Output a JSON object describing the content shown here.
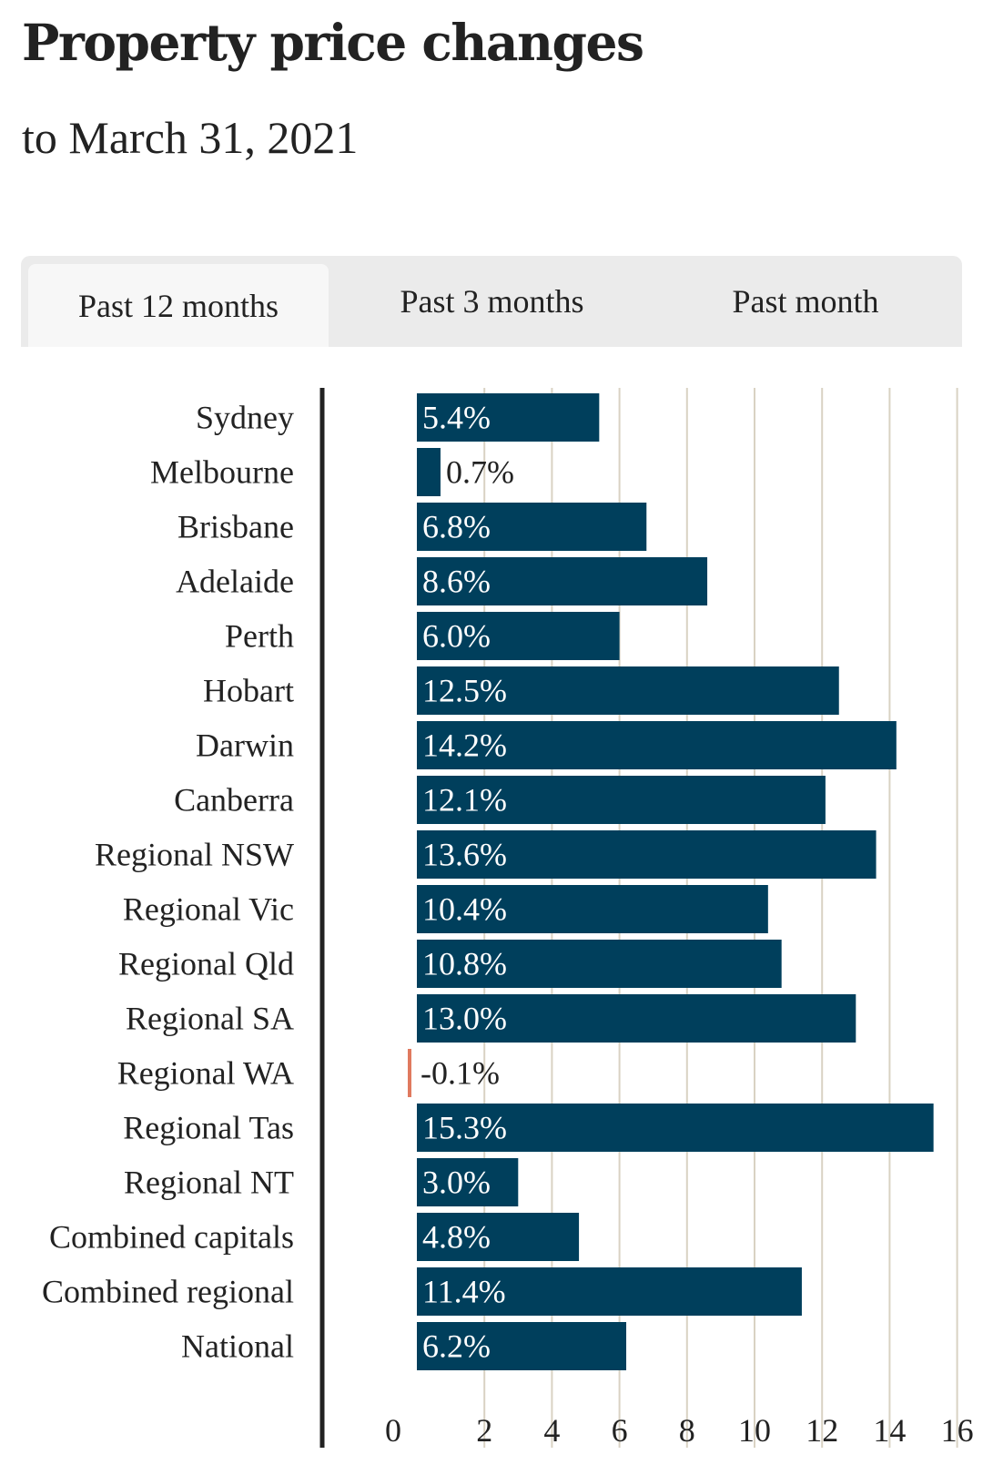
{
  "header": {
    "title": "Property price changes",
    "subtitle": "to March 31, 2021"
  },
  "tabs": [
    {
      "label": "Past 12 months",
      "active": true
    },
    {
      "label": "Past 3 months",
      "active": false
    },
    {
      "label": "Past month",
      "active": false
    }
  ],
  "colors": {
    "bar_positive": "#003f5c",
    "bar_negative": "#e07a5f",
    "gridline": "#d9d2c3",
    "axis": "#222222"
  },
  "chart_data": {
    "type": "bar",
    "orientation": "horizontal",
    "title": "Property price changes",
    "subtitle": "to March 31, 2021",
    "xlabel": "",
    "ylabel": "",
    "unit": "%",
    "xlim": [
      0,
      16
    ],
    "ticks": [
      0,
      2,
      4,
      6,
      8,
      10,
      12,
      14,
      16
    ],
    "grid": true,
    "categories": [
      "Sydney",
      "Melbourne",
      "Brisbane",
      "Adelaide",
      "Perth",
      "Hobart",
      "Darwin",
      "Canberra",
      "Regional NSW",
      "Regional Vic",
      "Regional Qld",
      "Regional SA",
      "Regional WA",
      "Regional Tas",
      "Regional NT",
      "Combined capitals",
      "Combined regional",
      "National"
    ],
    "values": [
      5.4,
      0.7,
      6.8,
      8.6,
      6.0,
      12.5,
      14.2,
      12.1,
      13.6,
      10.4,
      10.8,
      13.0,
      -0.1,
      15.3,
      3.0,
      4.8,
      11.4,
      6.2
    ],
    "labels": [
      "5.4%",
      "0.7%",
      "6.8%",
      "8.6%",
      "6.0%",
      "12.5%",
      "14.2%",
      "12.1%",
      "13.6%",
      "10.4%",
      "10.8%",
      "13.0%",
      "-0.1%",
      "15.3%",
      "3.0%",
      "4.8%",
      "11.4%",
      "6.2%"
    ]
  }
}
